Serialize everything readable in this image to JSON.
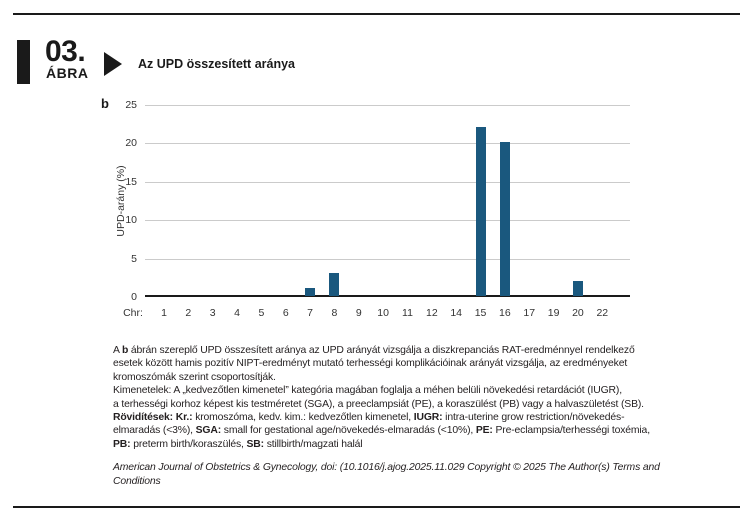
{
  "header": {
    "figure_number": "03.",
    "figure_label": "ÁBRA",
    "title": "Az UPD összesített aránya"
  },
  "chart_data": {
    "type": "bar",
    "panel_label": "b",
    "title": "Az UPD összesített aránya",
    "xlabel": "Chr:",
    "ylabel": "UPD-arány (%)",
    "categories": [
      "1",
      "2",
      "3",
      "4",
      "5",
      "6",
      "7",
      "8",
      "9",
      "10",
      "11",
      "12",
      "14",
      "15",
      "16",
      "17",
      "19",
      "20",
      "22"
    ],
    "values": [
      0,
      0,
      0,
      0,
      0,
      0,
      1,
      3,
      0,
      0,
      0,
      0,
      0,
      22,
      20,
      0,
      0,
      2,
      0
    ],
    "ylim": [
      0,
      25
    ],
    "yticks": [
      0,
      5,
      10,
      15,
      20,
      25
    ],
    "grid": true,
    "legend": "none",
    "bar_color": "#1A587E"
  },
  "caption": {
    "lines": [
      [
        {
          "t": "A ",
          "b": false
        },
        {
          "t": "b",
          "b": true
        },
        {
          "t": " ábrán szereplő UPD összesített aránya az UPD arányát vizsgálja a diszkrepanciás RAT-eredménnyel rendelkező",
          "b": false
        }
      ],
      [
        {
          "t": "esetek között hamis pozitív NIPT-eredményt mutató terhességi komplikációinak arányát vizsgálja, az eredményeket",
          "b": false
        }
      ],
      [
        {
          "t": "kromoszómák  szerint csoportosítják.",
          "b": false
        }
      ],
      [
        {
          "t": "Kimenetelek: A „kedvezőtlen kimenetel” kategória magában foglalja a méhen belüli növekedési retardációt (IUGR),",
          "b": false
        }
      ],
      [
        {
          "t": "a terhességi korhoz képest kis testméretet (SGA), a preeclampsiát (PE), a koraszülést (PB) vagy a halvaszületést (SB).",
          "b": false
        }
      ],
      [
        {
          "t": "Rövidítések: Kr.:",
          "b": true
        },
        {
          "t": " kromoszóma, kedv. kim.: kedvezőtlen kimenetel, ",
          "b": false
        },
        {
          "t": "IUGR:",
          "b": true
        },
        {
          "t": " intra-uterine grow restriction/növekedés-",
          "b": false
        }
      ],
      [
        {
          "t": "elmaradás (<3%), ",
          "b": false
        },
        {
          "t": "SGA:",
          "b": true
        },
        {
          "t": " small for gestational age/növekedés-elmaradás (<10%), ",
          "b": false
        },
        {
          "t": "PE:",
          "b": true
        },
        {
          "t": " Pre-eclampsia/terhességi toxémia,",
          "b": false
        }
      ],
      [
        {
          "t": "PB:",
          "b": true
        },
        {
          "t": " preterm birth/koraszülés, ",
          "b": false
        },
        {
          "t": "SB:",
          "b": true
        },
        {
          "t": " stillbirth/magzati halál",
          "b": false
        }
      ]
    ]
  },
  "source": {
    "lines": [
      "American Journal of Obstetrics & Gynecology, doi: (10.1016/j.ajog.2025.11.029 Copyright © 2025 The Author(s) Terms and",
      "Conditions"
    ]
  },
  "colors": {
    "bar": "#1A587E",
    "grid": "#CBCBCB",
    "axis": "#1A1A1A",
    "text": "#231F20"
  }
}
